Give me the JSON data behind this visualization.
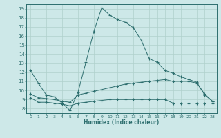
{
  "xlabel": "Humidex (Indice chaleur)",
  "background_color": "#cde8e8",
  "grid_color": "#b0d0cc",
  "line_color": "#2d6e6e",
  "xlim": [
    -0.5,
    23.5
  ],
  "ylim": [
    7.5,
    19.5
  ],
  "xticks": [
    0,
    1,
    2,
    3,
    4,
    5,
    6,
    7,
    8,
    9,
    10,
    11,
    12,
    13,
    14,
    15,
    16,
    17,
    18,
    19,
    20,
    21,
    22,
    23
  ],
  "yticks": [
    8,
    9,
    10,
    11,
    12,
    13,
    14,
    15,
    16,
    17,
    18,
    19
  ],
  "series": [
    {
      "x": [
        0,
        1,
        2,
        3,
        4,
        5,
        6,
        7,
        8,
        9,
        10,
        11,
        12,
        13,
        14,
        15,
        16,
        17,
        18,
        19,
        20,
        21,
        22,
        23
      ],
      "y": [
        12.2,
        10.8,
        9.5,
        9.3,
        8.6,
        7.8,
        9.8,
        13.1,
        16.5,
        19.1,
        18.3,
        17.8,
        17.5,
        16.9,
        15.5,
        13.5,
        13.1,
        12.2,
        11.9,
        11.5,
        11.2,
        10.9,
        9.5,
        8.8
      ]
    },
    {
      "x": [
        0,
        1,
        2,
        3,
        4,
        5,
        6,
        7,
        8,
        9,
        10,
        11,
        12,
        13,
        14,
        15,
        16,
        17,
        18,
        19,
        20,
        21,
        22,
        23
      ],
      "y": [
        9.6,
        9.2,
        9.1,
        9.0,
        8.8,
        8.7,
        9.5,
        9.7,
        9.9,
        10.1,
        10.3,
        10.5,
        10.7,
        10.8,
        10.9,
        11.0,
        11.1,
        11.2,
        11.0,
        11.0,
        11.0,
        10.8,
        9.6,
        8.8
      ]
    },
    {
      "x": [
        0,
        1,
        2,
        3,
        4,
        5,
        6,
        7,
        8,
        9,
        10,
        11,
        12,
        13,
        14,
        15,
        16,
        17,
        18,
        19,
        20,
        21,
        22,
        23
      ],
      "y": [
        9.2,
        8.7,
        8.7,
        8.6,
        8.5,
        8.3,
        8.6,
        8.7,
        8.8,
        8.9,
        9.0,
        9.0,
        9.0,
        9.0,
        9.0,
        9.0,
        9.0,
        9.0,
        8.6,
        8.6,
        8.6,
        8.6,
        8.6,
        8.6
      ]
    }
  ]
}
